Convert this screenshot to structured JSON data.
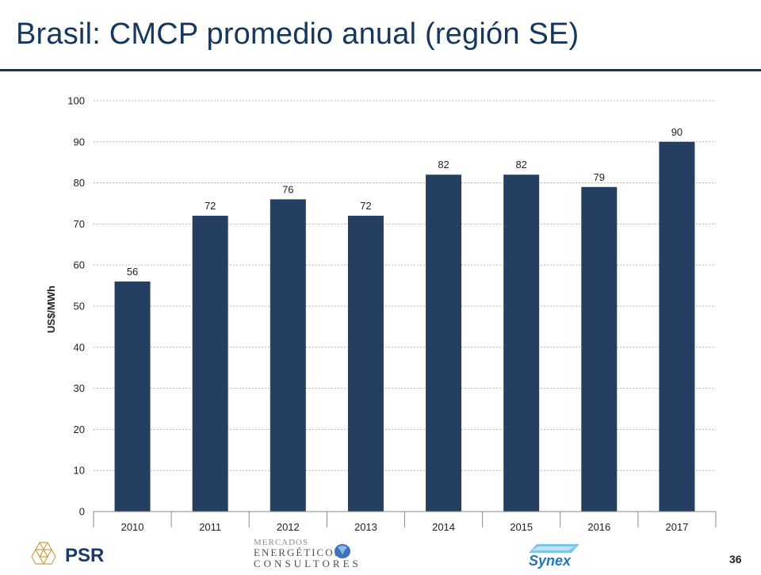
{
  "slide": {
    "title": "Brasil: CMCP promedio anual (región SE)",
    "page_number": "36"
  },
  "footer": {
    "psr_text": "PSR",
    "mec_line1": "MERCADOS",
    "mec_line2": "ENERGÉTICOS",
    "mec_line3": "CONSULTORES",
    "synex_text": "Synex"
  },
  "colors": {
    "bar": "#243f61",
    "title": "#16375e",
    "grid": "#b5b5b5"
  },
  "chart_data": {
    "type": "bar",
    "categories": [
      "2010",
      "2011",
      "2012",
      "2013",
      "2014",
      "2015",
      "2016",
      "2017"
    ],
    "values": [
      56,
      72,
      76,
      72,
      82,
      82,
      79,
      90
    ],
    "data_labels": [
      "56",
      "72",
      "76",
      "72",
      "82",
      "82",
      "79",
      "90"
    ],
    "title": "",
    "xlabel": "",
    "ylabel": "US$/MWh",
    "ylim": [
      0,
      100
    ],
    "yticks": [
      0,
      10,
      20,
      30,
      40,
      50,
      60,
      70,
      80,
      90,
      100
    ],
    "grid": true
  }
}
